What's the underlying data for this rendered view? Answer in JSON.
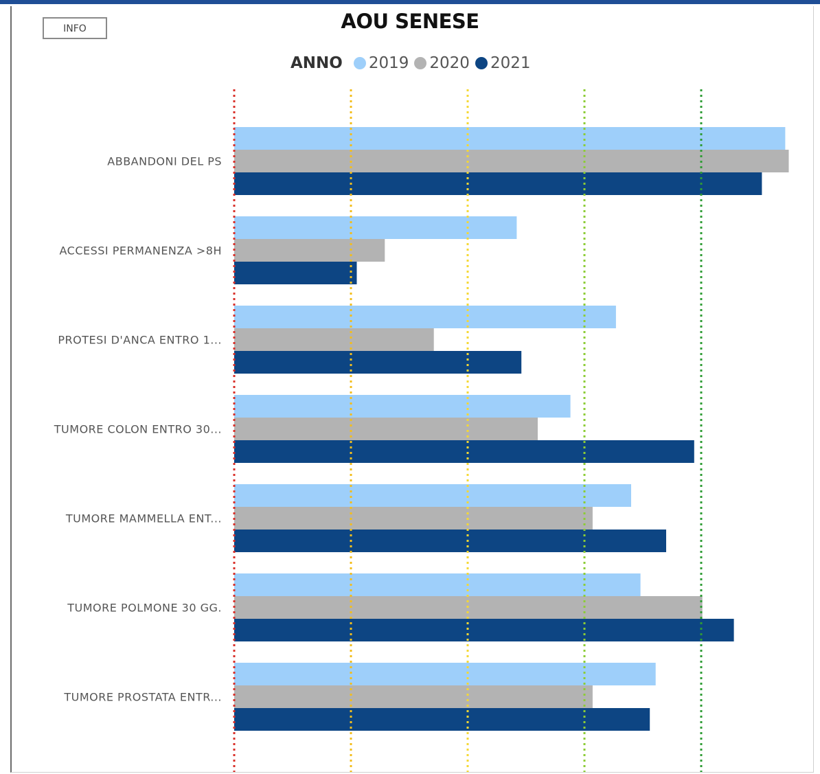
{
  "info_button": "INFO",
  "chart_data": {
    "type": "bar",
    "orientation": "horizontal",
    "title": "AOU SENESE",
    "legend_title": "ANNO",
    "legend_placement": "top",
    "categories": [
      "ABBANDONI DEL PS",
      "ACCESSI PERMANENZA >8H",
      "PROTESI D'ANCA ENTRO 1...",
      "TUMORE COLON ENTRO 30...",
      "TUMORE MAMMELLA ENT...",
      "TUMORE POLMONE 30 GG.",
      "TUMORE PROSTATA ENTR..."
    ],
    "series": [
      {
        "name": "2019",
        "color": "#9ecffa",
        "values": [
          4.72,
          2.42,
          3.27,
          2.88,
          3.4,
          3.48,
          3.61
        ]
      },
      {
        "name": "2020",
        "color": "#b3b3b3",
        "values": [
          4.75,
          1.29,
          1.71,
          2.6,
          3.07,
          4.01,
          3.07
        ]
      },
      {
        "name": "2021",
        "color": "#0d4583",
        "values": [
          4.52,
          1.05,
          2.46,
          3.94,
          3.7,
          4.28,
          3.56
        ]
      }
    ],
    "xlim": [
      0,
      5
    ],
    "reference_lines": [
      {
        "value": 0,
        "color": "#d9302a"
      },
      {
        "value": 1,
        "color": "#f3be1c"
      },
      {
        "value": 2,
        "color": "#f5d833"
      },
      {
        "value": 3,
        "color": "#8ccc36"
      },
      {
        "value": 4,
        "color": "#2f9c35"
      }
    ],
    "grid": false
  }
}
